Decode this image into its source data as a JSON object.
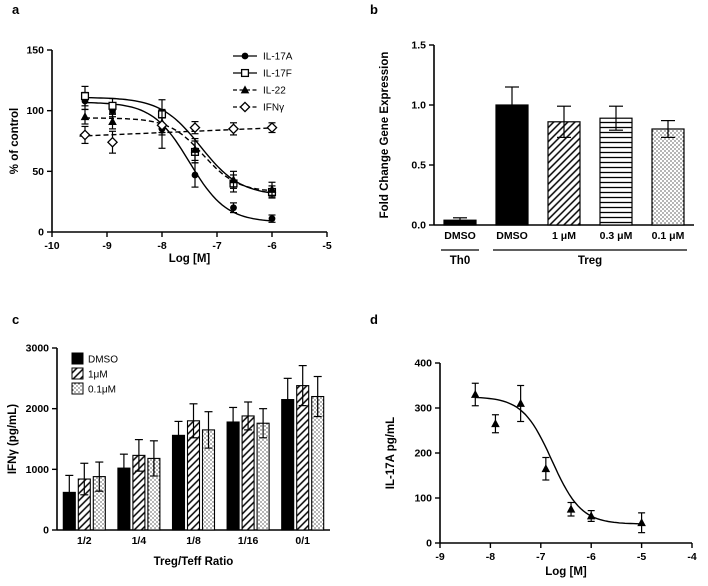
{
  "figure": {
    "background": "#ffffff",
    "ink": "#000000"
  },
  "panel_labels": {
    "a": "a",
    "b": "b",
    "c": "c",
    "d": "d"
  },
  "chart_data": [
    {
      "panel": "a",
      "type": "line",
      "title": "",
      "xlabel": "Log [M]",
      "ylabel": "% of control",
      "xlim": [
        -10,
        -5
      ],
      "ylim": [
        0,
        150
      ],
      "xticks": [
        -10,
        -9,
        -8,
        -7,
        -6,
        -5
      ],
      "xtick_labels": [
        "-10",
        "-9",
        "-8",
        "-7",
        "-6",
        "-5"
      ],
      "yticks": [
        0,
        50,
        100,
        150
      ],
      "ytick_labels": [
        "0",
        "50",
        "100",
        "150"
      ],
      "grid": false,
      "legend_position": "top-right",
      "series": [
        {
          "name": "IL-17A",
          "marker": "circle-filled",
          "linestyle": "solid",
          "x": [
            -9.4,
            -8.9,
            -8.0,
            -7.4,
            -6.7,
            -6.0
          ],
          "y": [
            108,
            100,
            85,
            47,
            20,
            11
          ],
          "yerr": [
            7,
            5,
            16,
            10,
            4,
            3
          ],
          "fit": {
            "top": 107,
            "bottom": 8,
            "logec50": -7.5,
            "hill": 1.3
          }
        },
        {
          "name": "IL-17F",
          "marker": "square-open",
          "linestyle": "solid",
          "x": [
            -9.4,
            -8.9,
            -8.0,
            -7.4,
            -6.7,
            -6.0
          ],
          "y": [
            112,
            104,
            97,
            66,
            40,
            33
          ],
          "yerr": [
            8,
            6,
            12,
            9,
            7,
            5
          ],
          "fit": {
            "top": 111,
            "bottom": 30,
            "logec50": -7.3,
            "hill": 1.2
          }
        },
        {
          "name": "IL-22",
          "marker": "triangle-filled",
          "linestyle": "dashed",
          "x": [
            -9.4,
            -8.9,
            -8.0,
            -7.4,
            -6.7,
            -6.0
          ],
          "y": [
            95,
            91,
            90,
            68,
            43,
            35
          ],
          "yerr": [
            6,
            6,
            10,
            9,
            7,
            6
          ],
          "fit": {
            "top": 94,
            "bottom": 33,
            "logec50": -7.25,
            "hill": 1.4
          }
        },
        {
          "name": "IFNγ",
          "marker": "diamond-open",
          "linestyle": "dashed",
          "x": [
            -9.4,
            -8.9,
            -8.0,
            -7.4,
            -6.7,
            -6.0
          ],
          "y": [
            80,
            74,
            88,
            86,
            85,
            86
          ],
          "yerr": [
            7,
            9,
            6,
            5,
            5,
            4
          ],
          "trend": {
            "x": [
              -9.5,
              -5.9
            ],
            "y": [
              79,
              86
            ]
          }
        }
      ]
    },
    {
      "panel": "b",
      "type": "bar",
      "title": "",
      "xlabel": "",
      "ylabel": "Fold Change Gene Expression",
      "ylim": [
        0,
        1.5
      ],
      "yticks": [
        0,
        0.5,
        1,
        1.5
      ],
      "ytick_labels": [
        "0.0",
        "0.5",
        "1.0",
        "1.5"
      ],
      "categories": [
        "DMSO",
        "DMSO",
        "1 μM",
        "0.3 μM",
        "0.1 μM"
      ],
      "values": [
        0.04,
        1.0,
        0.86,
        0.89,
        0.8
      ],
      "errors": [
        0.02,
        0.15,
        0.13,
        0.1,
        0.07
      ],
      "fills": [
        "solid",
        "solid",
        "hatch-diagonal",
        "hatch-horizontal",
        "dots"
      ],
      "groups": [
        {
          "label": "Th0",
          "span": [
            0,
            0
          ]
        },
        {
          "label": "Treg",
          "span": [
            1,
            4
          ]
        }
      ]
    },
    {
      "panel": "c",
      "type": "grouped-bar",
      "title": "",
      "xlabel": "Treg/Teff Ratio",
      "ylabel": "IFNγ (pg/mL)",
      "ylim": [
        0,
        3000
      ],
      "yticks": [
        0,
        1000,
        2000,
        3000
      ],
      "ytick_labels": [
        "0",
        "1000",
        "2000",
        "3000"
      ],
      "categories": [
        "1/2",
        "1/4",
        "1/8",
        "1/16",
        "0/1"
      ],
      "legend_position": "top-left",
      "series": [
        {
          "name": "DMSO",
          "fill": "solid",
          "values": [
            620,
            1020,
            1560,
            1780,
            2150
          ],
          "errors": [
            280,
            230,
            230,
            240,
            350
          ]
        },
        {
          "name": "1μM",
          "fill": "hatch-diagonal",
          "values": [
            840,
            1230,
            1800,
            1880,
            2380
          ],
          "errors": [
            260,
            260,
            280,
            230,
            330
          ]
        },
        {
          "name": "0.1μM",
          "fill": "dots",
          "values": [
            880,
            1180,
            1650,
            1760,
            2200
          ],
          "errors": [
            240,
            290,
            300,
            240,
            330
          ]
        }
      ]
    },
    {
      "panel": "d",
      "type": "scatter",
      "title": "",
      "xlabel": "Log [M]",
      "ylabel": "IL-17A pg/mL",
      "xlim": [
        -9,
        -4
      ],
      "ylim": [
        0,
        400
      ],
      "xticks": [
        -9,
        -8,
        -7,
        -6,
        -5,
        -4
      ],
      "xtick_labels": [
        "-9",
        "-8",
        "-7",
        "-6",
        "-5",
        "-4"
      ],
      "yticks": [
        0,
        100,
        200,
        300,
        400
      ],
      "ytick_labels": [
        "0",
        "100",
        "200",
        "300",
        "400"
      ],
      "series": [
        {
          "name": "IL-17A",
          "marker": "triangle-filled",
          "linestyle": "solid",
          "x": [
            -8.3,
            -7.9,
            -7.4,
            -6.9,
            -6.4,
            -6.0,
            -5.0
          ],
          "y": [
            330,
            265,
            310,
            165,
            75,
            60,
            45
          ],
          "yerr": [
            25,
            20,
            40,
            25,
            15,
            12,
            22
          ],
          "fit": {
            "top": 325,
            "bottom": 42,
            "logec50": -6.78,
            "hill": 1.5
          }
        }
      ]
    }
  ]
}
